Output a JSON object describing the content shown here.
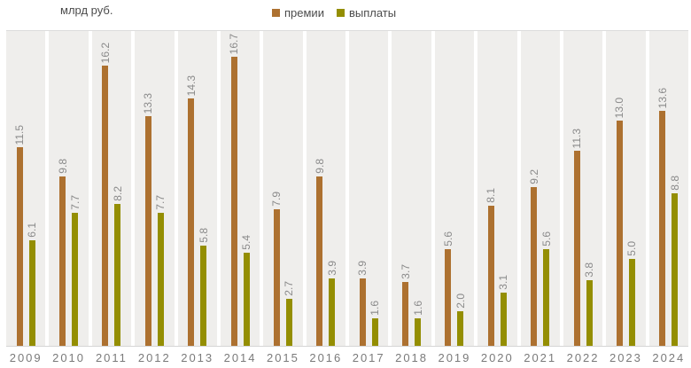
{
  "chart_data": {
    "type": "bar",
    "ylabel": "млрд руб.",
    "categories": [
      "2009",
      "2010",
      "2011",
      "2012",
      "2013",
      "2014",
      "2015",
      "2016",
      "2017",
      "2018",
      "2019",
      "2020",
      "2021",
      "2022",
      "2023",
      "2024"
    ],
    "series": [
      {
        "key": "premiums",
        "name": "премии",
        "color": "#AD7130",
        "values": [
          11.5,
          9.8,
          16.2,
          13.3,
          14.3,
          16.7,
          7.9,
          9.8,
          3.9,
          3.7,
          5.6,
          8.1,
          9.2,
          11.3,
          13.0,
          13.6
        ]
      },
      {
        "key": "payouts",
        "name": "выплаты",
        "color": "#948E02",
        "values": [
          6.1,
          7.7,
          8.2,
          7.7,
          5.8,
          5.4,
          2.7,
          3.9,
          1.6,
          1.6,
          2.0,
          3.1,
          5.6,
          3.8,
          5.0,
          8.8
        ]
      }
    ],
    "ylim": [
      0,
      18.3
    ],
    "value_labels": "rotated 90deg, one decimal",
    "legend_position": "top-center",
    "grid": "alternating light-gray category bands with white gaps",
    "band_color": "#EFEEEC"
  }
}
